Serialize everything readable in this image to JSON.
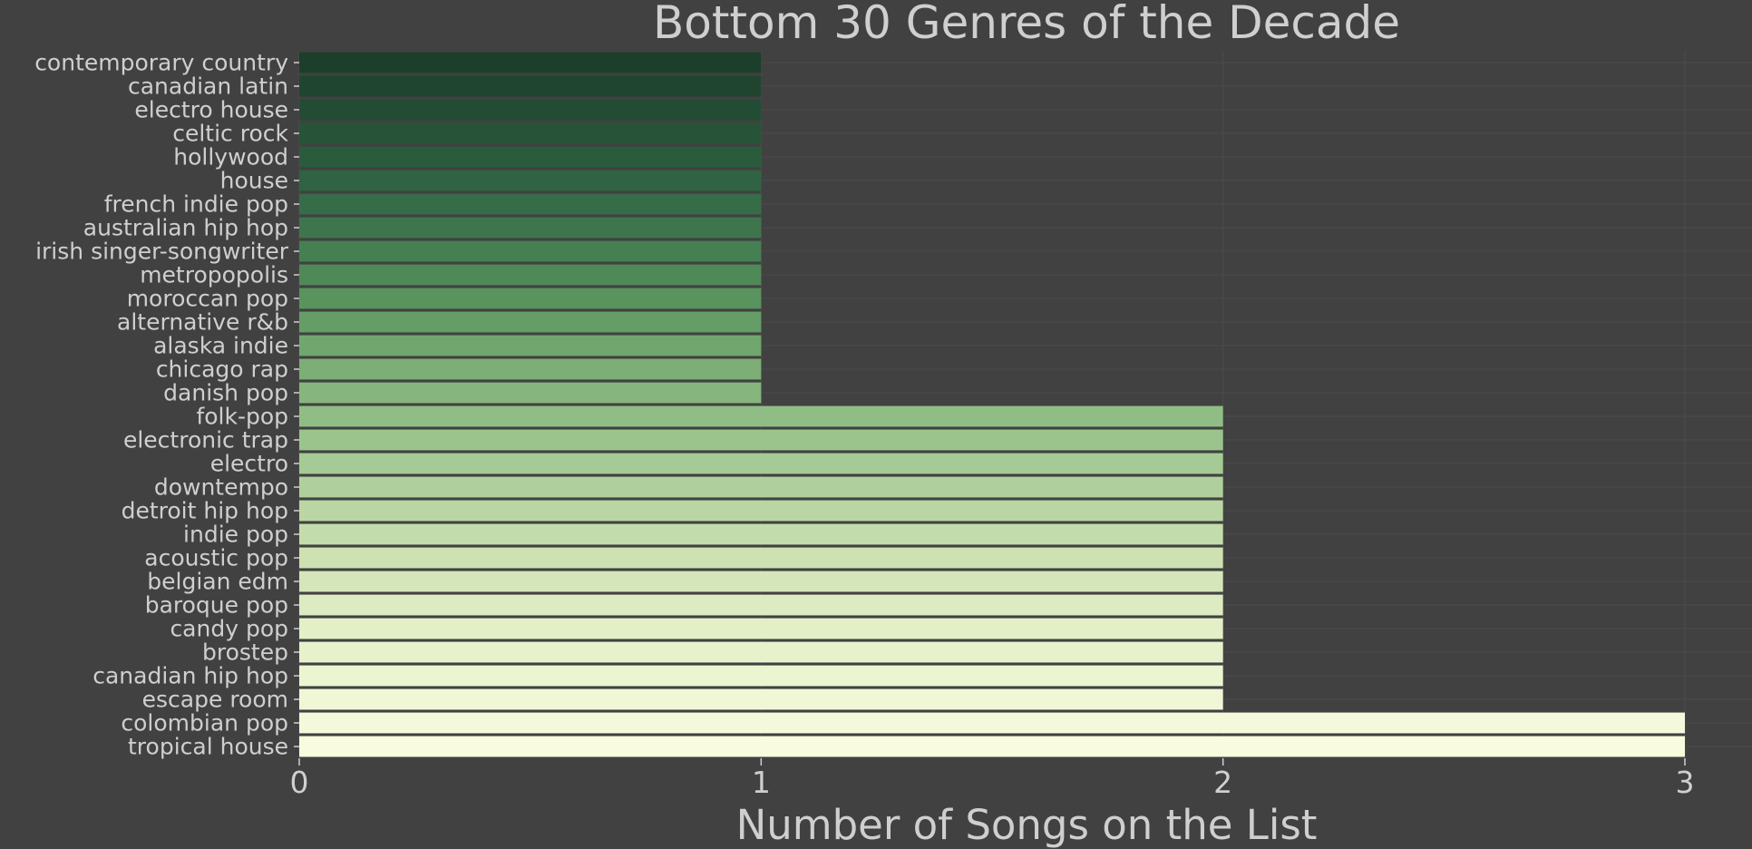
{
  "chart_data": {
    "type": "bar",
    "orientation": "horizontal",
    "title": "Bottom 30 Genres of the Decade",
    "xlabel": "Number of Songs on the List",
    "ylabel": "",
    "xlim": [
      0,
      3
    ],
    "xticks": [
      "0",
      "1",
      "2",
      "3"
    ],
    "grid": true,
    "legend": "none",
    "background_color": "#414141",
    "text_color": "#cfcfcf",
    "colormap": "Greens (dark to light, top to bottom)",
    "categories": [
      "contemporary country",
      "canadian latin",
      "electro house",
      "celtic rock",
      "hollywood",
      "house",
      "french indie pop",
      "australian hip hop",
      "irish singer-songwriter",
      "metropopolis",
      "moroccan pop",
      "alternative r&b",
      "alaska indie",
      "chicago rap",
      "danish pop",
      "folk-pop",
      "electronic trap",
      "electro",
      "downtempo",
      "detroit hip hop",
      "indie pop",
      "acoustic pop",
      "belgian edm",
      "baroque pop",
      "candy pop",
      "brostep",
      "canadian hip hop",
      "escape room",
      "colombian pop",
      "tropical house"
    ],
    "values": [
      1,
      1,
      1,
      1,
      1,
      1,
      1,
      1,
      1,
      1,
      1,
      1,
      1,
      1,
      1,
      2,
      2,
      2,
      2,
      2,
      2,
      2,
      2,
      2,
      2,
      2,
      2,
      2,
      3,
      3
    ],
    "colors": [
      "#1b3f2a",
      "#1f4530",
      "#234c34",
      "#275438",
      "#2b5b3d",
      "#306343",
      "#376c48",
      "#3e754d",
      "#467f52",
      "#4f8957",
      "#59935e",
      "#659d66",
      "#71a66e",
      "#7cae76",
      "#86b67e",
      "#90bd85",
      "#9bc48d",
      "#a5ca95",
      "#afd09c",
      "#b9d6a4",
      "#c3dcab",
      "#cde1b3",
      "#d5e6ba",
      "#dcebc1",
      "#e2efc7",
      "#e7f2cc",
      "#ecf5d2",
      "#f0f7d7",
      "#f5f9dc",
      "#f8fbe0"
    ]
  }
}
